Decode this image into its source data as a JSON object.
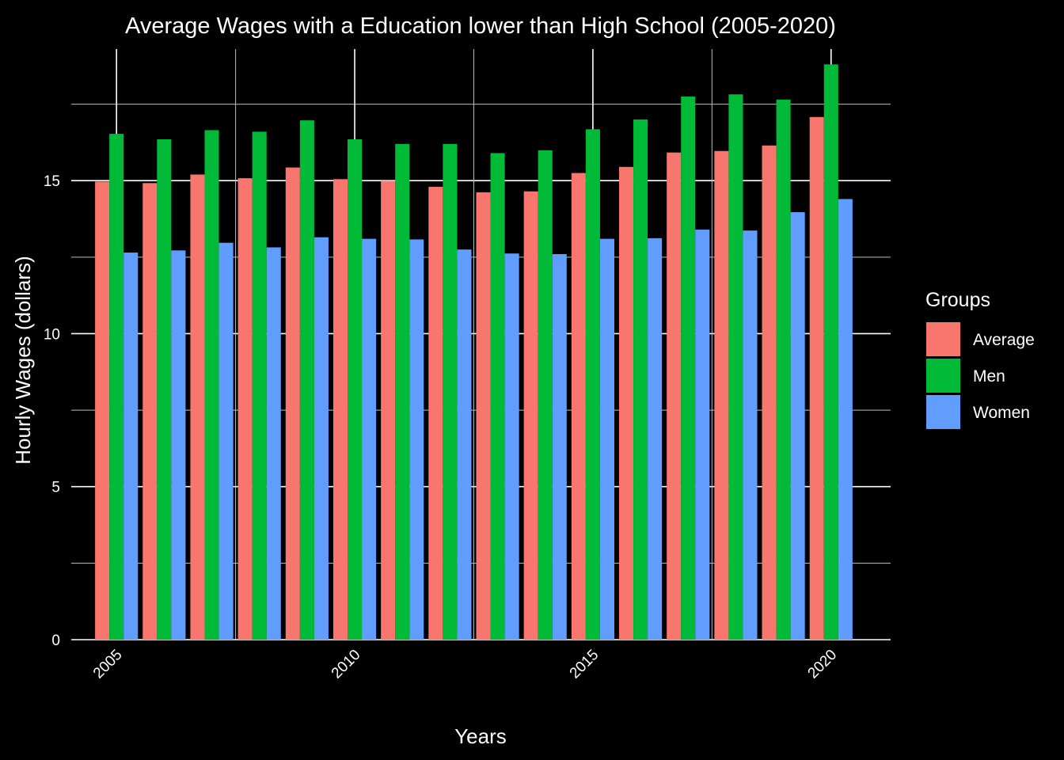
{
  "chart_data": {
    "type": "bar",
    "title": "Average Wages with a Education lower than High School (2005-2020)",
    "xlabel": "Years",
    "ylabel": "Hourly Wages (dollars)",
    "x": [
      2005,
      2006,
      2007,
      2008,
      2009,
      2010,
      2011,
      2012,
      2013,
      2014,
      2015,
      2016,
      2017,
      2018,
      2019,
      2020
    ],
    "x_ticks": [
      "2005",
      "2010",
      "2015",
      "2020"
    ],
    "y_ticks": [
      "0",
      "5",
      "10",
      "15"
    ],
    "ylim": [
      0,
      19.3
    ],
    "xlim": [
      2004.05,
      2021.25
    ],
    "grid": true,
    "legend": {
      "title": "Groups",
      "position": "right"
    },
    "series": [
      {
        "name": "Average",
        "color": "#F8766D",
        "values": [
          14.97,
          14.92,
          15.2,
          15.08,
          15.43,
          15.05,
          14.99,
          14.8,
          14.62,
          14.65,
          15.25,
          15.45,
          15.92,
          15.97,
          16.15,
          17.08
        ]
      },
      {
        "name": "Men",
        "color": "#00BA38",
        "values": [
          16.53,
          16.35,
          16.65,
          16.6,
          16.97,
          16.35,
          16.2,
          16.2,
          15.9,
          15.99,
          16.68,
          17.0,
          17.75,
          17.82,
          17.65,
          18.8
        ]
      },
      {
        "name": "Women",
        "color": "#619CFF",
        "values": [
          12.65,
          12.72,
          12.97,
          12.82,
          13.15,
          13.1,
          13.08,
          12.75,
          12.62,
          12.6,
          13.1,
          13.12,
          13.4,
          13.37,
          13.97,
          14.4
        ]
      }
    ]
  }
}
